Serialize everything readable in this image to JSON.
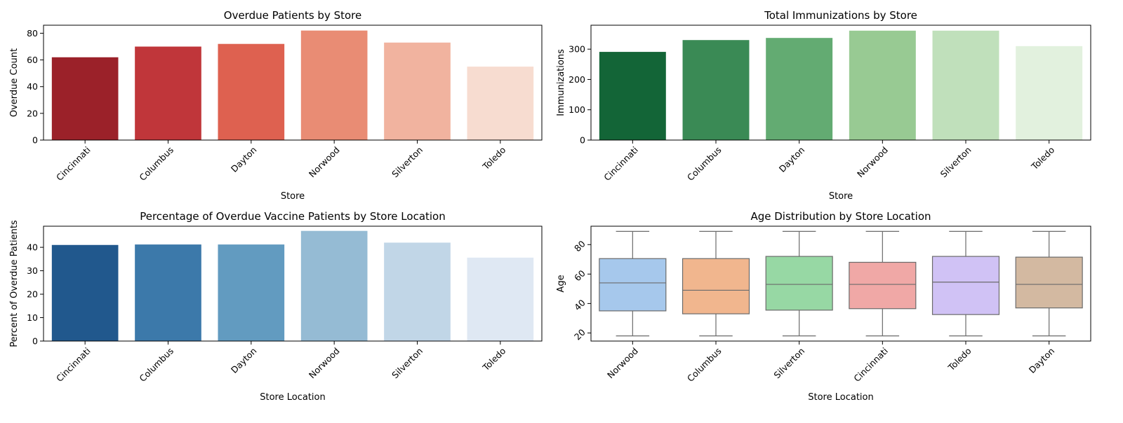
{
  "chart_data": [
    {
      "type": "bar",
      "title": "Overdue Patients by Store",
      "xlabel": "Store",
      "ylabel": "Overdue Count",
      "categories": [
        "Cincinnati",
        "Columbus",
        "Dayton",
        "Norwood",
        "Silverton",
        "Toledo"
      ],
      "values": [
        62,
        70,
        72,
        82,
        73,
        55
      ],
      "colors": [
        "#9b2129",
        "#c0363a",
        "#de6150",
        "#e98c74",
        "#f1b39f",
        "#f7dcd0"
      ],
      "ylim": [
        0,
        86
      ],
      "yticks": [
        0,
        20,
        40,
        60,
        80
      ]
    },
    {
      "type": "bar",
      "title": "Total Immunizations by Store",
      "xlabel": "Store",
      "ylabel": "Immunizations",
      "categories": [
        "Cincinnati",
        "Columbus",
        "Dayton",
        "Norwood",
        "Silverton",
        "Toledo"
      ],
      "values": [
        291,
        330,
        337,
        361,
        361,
        310
      ],
      "colors": [
        "#136537",
        "#3a8a55",
        "#63ab72",
        "#98ca93",
        "#c0e0bb",
        "#e2f1de"
      ],
      "ylim": [
        0,
        379
      ],
      "yticks": [
        0,
        100,
        200,
        300
      ]
    },
    {
      "type": "bar",
      "title": "Percentage of Overdue Vaccine Patients by Store Location",
      "xlabel": "Store Location",
      "ylabel": "Percent of Overdue Patients",
      "categories": [
        "Cincinnati",
        "Columbus",
        "Dayton",
        "Norwood",
        "Silverton",
        "Toledo"
      ],
      "values": [
        41,
        41.2,
        41.2,
        47,
        42,
        35.6
      ],
      "colors": [
        "#21588d",
        "#3c79aa",
        "#629bc0",
        "#95bbd4",
        "#c1d6e7",
        "#dfe8f3"
      ],
      "ylim": [
        0,
        49
      ],
      "yticks": [
        0,
        10,
        20,
        30,
        40
      ]
    },
    {
      "type": "box",
      "title": "Age Distribution by Store Location",
      "xlabel": "Store Location",
      "ylabel": "Age",
      "categories": [
        "Norwood",
        "Columbus",
        "Silverton",
        "Cincinnati",
        "Toledo",
        "Dayton"
      ],
      "boxes": [
        {
          "min": 18,
          "q1": 35,
          "median": 54,
          "q3": 70.5,
          "max": 89
        },
        {
          "min": 18,
          "q1": 33,
          "median": 49,
          "q3": 70.5,
          "max": 89
        },
        {
          "min": 18,
          "q1": 35.5,
          "median": 53,
          "q3": 72,
          "max": 89
        },
        {
          "min": 18,
          "q1": 36.5,
          "median": 53,
          "q3": 68,
          "max": 89
        },
        {
          "min": 18,
          "q1": 32.5,
          "median": 54.5,
          "q3": 72,
          "max": 89
        },
        {
          "min": 18,
          "q1": 37,
          "median": 53,
          "q3": 71.5,
          "max": 89
        }
      ],
      "colors": [
        "#a6c8ec",
        "#f1b68e",
        "#97d8a4",
        "#f0a8a6",
        "#d0c2f5",
        "#d3b9a1"
      ],
      "ylim": [
        14.5,
        92.5
      ],
      "yticks": [
        20,
        40,
        60,
        80
      ]
    }
  ]
}
